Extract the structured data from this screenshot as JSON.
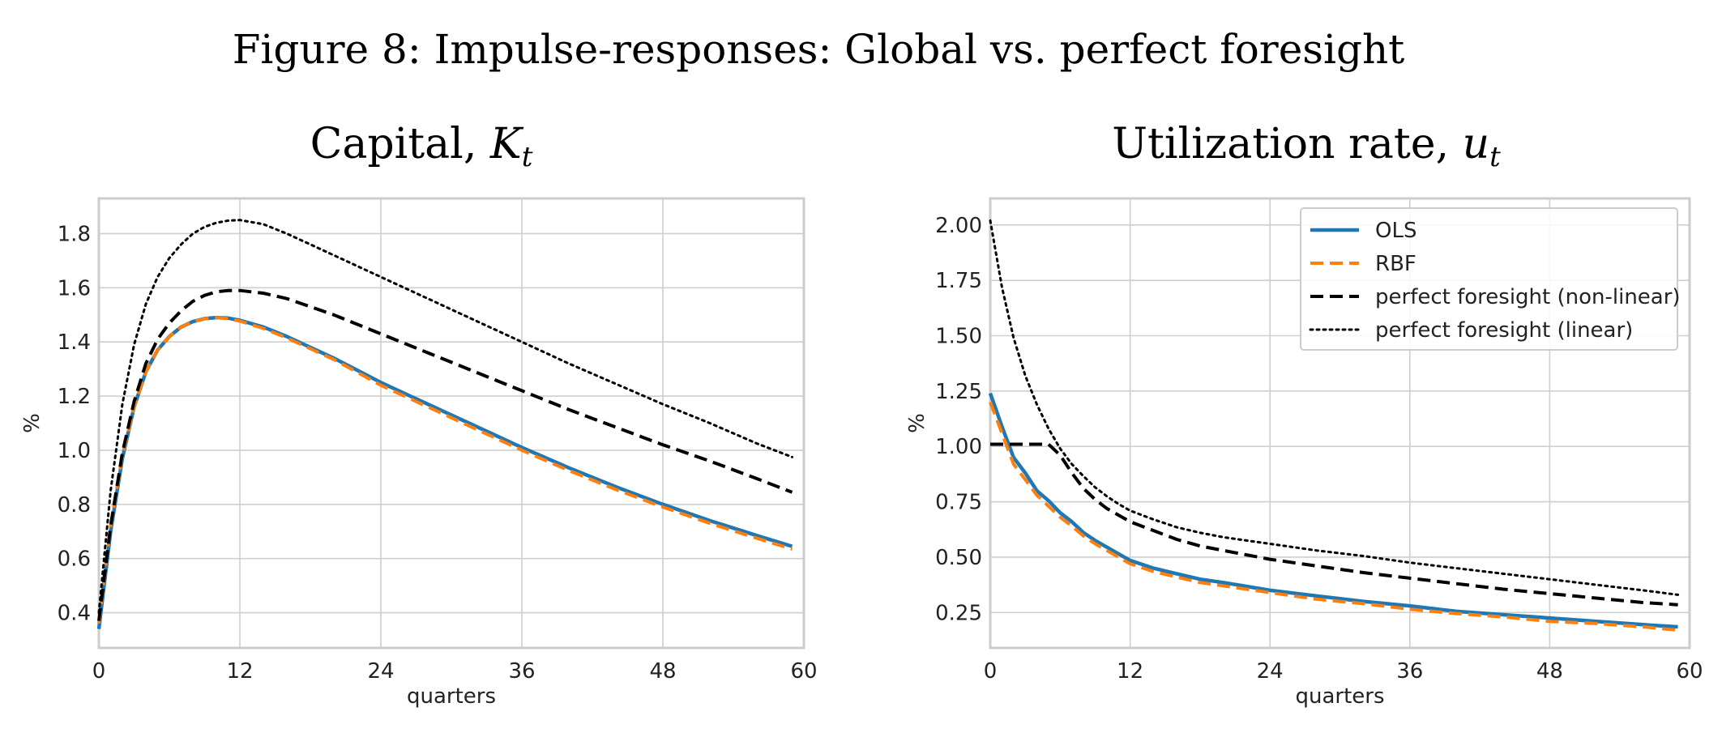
{
  "figure_title": "Figure 8: Impulse-responses: Global vs. perfect foresight",
  "colors": {
    "ols": "#1f77b4",
    "rbf": "#ff7f0e",
    "pf_nonlinear": "#000000",
    "pf_linear": "#000000",
    "grid": "#cfcfcf",
    "axes_frame": "#cccccc"
  },
  "legend": {
    "placement": "top-right",
    "items": [
      {
        "label": "OLS",
        "style": "solid",
        "color": "#1f77b4"
      },
      {
        "label": "RBF",
        "style": "dashed",
        "color": "#ff7f0e"
      },
      {
        "label": "perfect foresight (non-linear)",
        "style": "dashed",
        "color": "#000000"
      },
      {
        "label": "perfect foresight (linear)",
        "style": "dotted",
        "color": "#000000"
      }
    ]
  },
  "chart_data": [
    {
      "type": "line",
      "title_main": "Capital, ",
      "title_var": "K",
      "title_sub": "t",
      "xlabel": "quarters",
      "ylabel": "%",
      "xlim": [
        0,
        60
      ],
      "ylim": [
        0.27,
        1.93
      ],
      "xticks": [
        0,
        12,
        24,
        36,
        48,
        60
      ],
      "yticks": [
        0.4,
        0.6,
        0.8,
        1.0,
        1.2,
        1.4,
        1.6,
        1.8
      ],
      "ytick_labels": [
        "0.4",
        "0.6",
        "0.8",
        "1.0",
        "1.2",
        "1.4",
        "1.6",
        "1.8"
      ],
      "grid": true,
      "x": [
        0,
        1,
        2,
        3,
        4,
        5,
        6,
        7,
        8,
        9,
        10,
        11,
        12,
        14,
        16,
        18,
        20,
        24,
        28,
        32,
        36,
        40,
        44,
        48,
        52,
        56,
        59
      ],
      "series": [
        {
          "key": "ols",
          "name": "OLS",
          "style": "solid",
          "values": [
            0.34,
            0.7,
            0.97,
            1.16,
            1.29,
            1.37,
            1.42,
            1.455,
            1.475,
            1.486,
            1.49,
            1.488,
            1.48,
            1.455,
            1.42,
            1.38,
            1.34,
            1.25,
            1.17,
            1.09,
            1.01,
            0.935,
            0.865,
            0.8,
            0.74,
            0.685,
            0.645
          ]
        },
        {
          "key": "rbf",
          "name": "RBF",
          "style": "dashed",
          "values": [
            0.36,
            0.72,
            0.98,
            1.16,
            1.29,
            1.37,
            1.42,
            1.455,
            1.475,
            1.486,
            1.49,
            1.486,
            1.477,
            1.45,
            1.415,
            1.375,
            1.335,
            1.24,
            1.16,
            1.08,
            1.0,
            0.925,
            0.855,
            0.79,
            0.73,
            0.675,
            0.635
          ]
        },
        {
          "key": "pf_nonlinear",
          "name": "perfect foresight (non-linear)",
          "style": "dashed",
          "values": [
            0.37,
            0.72,
            0.99,
            1.18,
            1.32,
            1.41,
            1.47,
            1.515,
            1.55,
            1.572,
            1.585,
            1.59,
            1.59,
            1.58,
            1.56,
            1.53,
            1.5,
            1.43,
            1.36,
            1.29,
            1.22,
            1.15,
            1.085,
            1.02,
            0.96,
            0.895,
            0.845
          ]
        },
        {
          "key": "pf_linear",
          "name": "perfect foresight (linear)",
          "style": "dotted",
          "values": [
            0.4,
            0.85,
            1.17,
            1.39,
            1.54,
            1.64,
            1.71,
            1.76,
            1.8,
            1.825,
            1.84,
            1.848,
            1.85,
            1.835,
            1.8,
            1.76,
            1.72,
            1.64,
            1.56,
            1.48,
            1.4,
            1.32,
            1.245,
            1.17,
            1.1,
            1.025,
            0.975
          ]
        }
      ]
    },
    {
      "type": "line",
      "title_main": "Utilization rate, ",
      "title_var": "u",
      "title_sub": "t",
      "xlabel": "quarters",
      "ylabel": "%",
      "xlim": [
        0,
        60
      ],
      "ylim": [
        0.09,
        2.12
      ],
      "xticks": [
        0,
        12,
        24,
        36,
        48,
        60
      ],
      "yticks": [
        0.25,
        0.5,
        0.75,
        1.0,
        1.25,
        1.5,
        1.75,
        2.0
      ],
      "ytick_labels": [
        "0.25",
        "0.50",
        "0.75",
        "1.00",
        "1.25",
        "1.50",
        "1.75",
        "2.00"
      ],
      "grid": true,
      "x": [
        0,
        1,
        2,
        3,
        4,
        5,
        6,
        7,
        8,
        9,
        10,
        11,
        12,
        14,
        16,
        18,
        20,
        24,
        28,
        32,
        36,
        40,
        44,
        48,
        52,
        56,
        59
      ],
      "series": [
        {
          "key": "ols",
          "name": "OLS",
          "style": "solid",
          "values": [
            1.24,
            1.09,
            0.95,
            0.88,
            0.8,
            0.755,
            0.7,
            0.66,
            0.61,
            0.575,
            0.545,
            0.515,
            0.485,
            0.45,
            0.425,
            0.4,
            0.385,
            0.35,
            0.325,
            0.3,
            0.28,
            0.255,
            0.24,
            0.225,
            0.21,
            0.195,
            0.185
          ]
        },
        {
          "key": "rbf",
          "name": "RBF",
          "style": "dashed",
          "values": [
            1.2,
            1.06,
            0.92,
            0.85,
            0.78,
            0.73,
            0.68,
            0.64,
            0.595,
            0.56,
            0.53,
            0.5,
            0.47,
            0.435,
            0.41,
            0.385,
            0.37,
            0.34,
            0.31,
            0.29,
            0.265,
            0.245,
            0.23,
            0.21,
            0.2,
            0.185,
            0.17
          ]
        },
        {
          "key": "pf_nonlinear",
          "name": "perfect foresight (non-linear)",
          "style": "dashed",
          "values": [
            1.01,
            1.01,
            1.01,
            1.01,
            1.01,
            1.01,
            0.96,
            0.88,
            0.81,
            0.76,
            0.72,
            0.69,
            0.66,
            0.62,
            0.58,
            0.55,
            0.53,
            0.49,
            0.46,
            0.43,
            0.405,
            0.38,
            0.355,
            0.335,
            0.315,
            0.295,
            0.285
          ]
        },
        {
          "key": "pf_linear",
          "name": "perfect foresight (linear)",
          "style": "dotted",
          "values": [
            2.02,
            1.72,
            1.49,
            1.32,
            1.19,
            1.08,
            0.99,
            0.92,
            0.865,
            0.815,
            0.775,
            0.74,
            0.71,
            0.67,
            0.635,
            0.61,
            0.59,
            0.56,
            0.53,
            0.505,
            0.475,
            0.45,
            0.425,
            0.4,
            0.375,
            0.35,
            0.33
          ]
        }
      ]
    }
  ]
}
